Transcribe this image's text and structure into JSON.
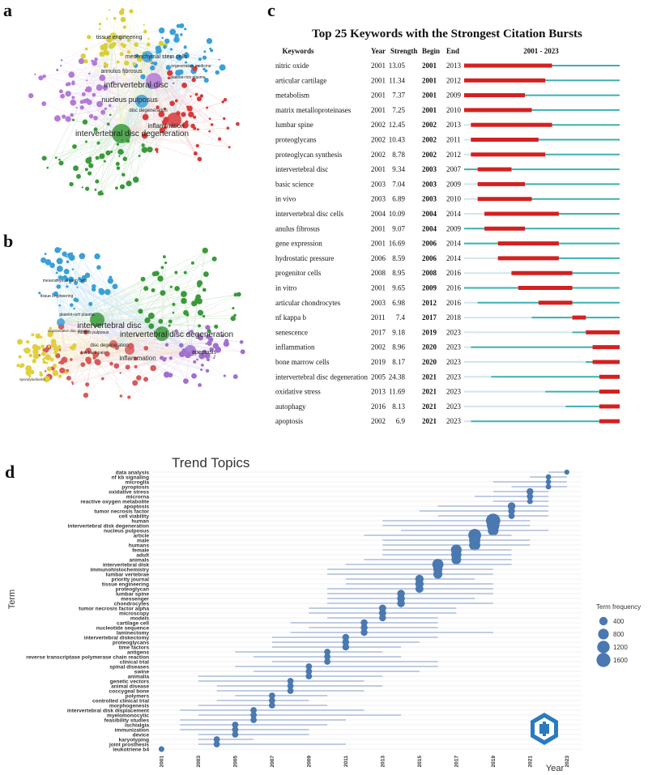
{
  "panels": {
    "a": {
      "letter": "a"
    },
    "b": {
      "letter": "b"
    },
    "c": {
      "letter": "c"
    },
    "d": {
      "letter": "d"
    }
  },
  "network_a": {
    "big_labels": [
      "intervertebral disc",
      "intervertebral disc degeneration",
      "nucleus pulposus",
      "inflammation",
      "annulus fibrosus",
      "mesenchymal stem cells",
      "tissue engineering",
      "disc degeneration",
      "regenerative medicine",
      "platelet-rich plasma"
    ],
    "colors": {
      "green": "#3a9a3a",
      "red": "#d83a3a",
      "blue": "#3aa0d8",
      "yellow": "#d8d03a",
      "purple": "#b47ad8"
    }
  },
  "network_b": {
    "big_labels": [
      "intervertebral disc",
      "intervertebral disc degeneration",
      "inflammation",
      "apoptosis",
      "disc degeneration",
      "mesenchymal stem cells",
      "tissue engineering",
      "nucleus pulposus",
      "low back pain",
      "platelet-rich plasma",
      "spondylodiscitis",
      "degenerative disc disease"
    ],
    "colors": {
      "green": "#3a9a3a",
      "red": "#d85a5a",
      "blue": "#3aa0d8",
      "yellow": "#e0d040",
      "purple": "#a070d0"
    }
  },
  "chart_data": [
    {
      "type": "table",
      "panel": "c",
      "title": "Top 25 Keywords with the Strongest Citation Bursts",
      "columns": [
        "Keywords",
        "Year",
        "Strength",
        "Begin",
        "End",
        "2001 - 2023"
      ],
      "timeline_range": [
        2001,
        2023
      ],
      "rows": [
        {
          "keyword": "nitric oxide",
          "year": 2001,
          "strength": "13.05",
          "begin": 2001,
          "end": 2013
        },
        {
          "keyword": "articular cartilage",
          "year": 2001,
          "strength": "11.34",
          "begin": 2001,
          "end": 2012
        },
        {
          "keyword": "metabolism",
          "year": 2001,
          "strength": "7.37",
          "begin": 2001,
          "end": 2009
        },
        {
          "keyword": "matrix metalloproteinases",
          "year": 2001,
          "strength": "7.25",
          "begin": 2001,
          "end": 2010
        },
        {
          "keyword": "lumbar spine",
          "year": 2002,
          "strength": "12.45",
          "begin": 2002,
          "end": 2013
        },
        {
          "keyword": "proteoglycans",
          "year": 2002,
          "strength": "10.43",
          "begin": 2002,
          "end": 2011
        },
        {
          "keyword": "proteoglycan synthesis",
          "year": 2002,
          "strength": "8.78",
          "begin": 2002,
          "end": 2012
        },
        {
          "keyword": "intervertebral disc",
          "year": 2001,
          "strength": "9.34",
          "begin": 2003,
          "end": 2007
        },
        {
          "keyword": "basic science",
          "year": 2003,
          "strength": "7.04",
          "begin": 2003,
          "end": 2009
        },
        {
          "keyword": "in vivo",
          "year": 2003,
          "strength": "6.89",
          "begin": 2003,
          "end": 2010
        },
        {
          "keyword": "intervertebral disc cells",
          "year": 2004,
          "strength": "10.09",
          "begin": 2004,
          "end": 2014
        },
        {
          "keyword": "anulus fibrosus",
          "year": 2001,
          "strength": "9.07",
          "begin": 2004,
          "end": 2009
        },
        {
          "keyword": "gene expression",
          "year": 2001,
          "strength": "16.69",
          "begin": 2006,
          "end": 2014
        },
        {
          "keyword": "hydrostatic pressure",
          "year": 2006,
          "strength": "8.59",
          "begin": 2006,
          "end": 2014
        },
        {
          "keyword": "progenitor cells",
          "year": 2008,
          "strength": "8.95",
          "begin": 2008,
          "end": 2016
        },
        {
          "keyword": "in vitro",
          "year": 2001,
          "strength": "9.65",
          "begin": 2009,
          "end": 2016
        },
        {
          "keyword": "articular chondrocytes",
          "year": 2003,
          "strength": "6.98",
          "begin": 2012,
          "end": 2016
        },
        {
          "keyword": "nf kappa b",
          "year": 2011,
          "strength": "7.4",
          "begin": 2017,
          "end": 2018
        },
        {
          "keyword": "senescence",
          "year": 2017,
          "strength": "9.18",
          "begin": 2019,
          "end": 2023
        },
        {
          "keyword": "inflammation",
          "year": 2002,
          "strength": "8.96",
          "begin": 2020,
          "end": 2023
        },
        {
          "keyword": "bone marrow cells",
          "year": 2019,
          "strength": "8.17",
          "begin": 2020,
          "end": 2023
        },
        {
          "keyword": "intervertebral disc degeneration",
          "year": 2005,
          "strength": "24.38",
          "begin": 2021,
          "end": 2023
        },
        {
          "keyword": "oxidative stress",
          "year": 2013,
          "strength": "11.69",
          "begin": 2021,
          "end": 2023
        },
        {
          "keyword": "autophagy",
          "year": 2016,
          "strength": "8.13",
          "begin": 2021,
          "end": 2023
        },
        {
          "keyword": "apoptosis",
          "year": 2002,
          "strength": "6.9",
          "begin": 2021,
          "end": 2023
        }
      ],
      "colors": {
        "burst": "#d42020",
        "active": "#3ab0b0",
        "inactive": "#cfe6ea"
      }
    },
    {
      "type": "scatter",
      "panel": "d",
      "title": "Trend Topics",
      "xlabel": "Year",
      "ylabel": "Term",
      "xlim": [
        2000.5,
        2023.8
      ],
      "x_ticks": [
        2001,
        2003,
        2005,
        2007,
        2009,
        2011,
        2013,
        2015,
        2017,
        2019,
        2021,
        2023
      ],
      "legend": {
        "title": "Term frequency",
        "sizes": [
          400,
          800,
          1200,
          1600
        ],
        "position": "right"
      },
      "point_color": "#4a78b0",
      "line_color": "#9aaed0",
      "terms": [
        {
          "term": "data analysis",
          "start": 2022,
          "median": 2023,
          "end": 2023,
          "freq": 60
        },
        {
          "term": "nf kb signaling",
          "start": 2021,
          "median": 2022,
          "end": 2023,
          "freq": 80
        },
        {
          "term": "microglia",
          "start": 2019,
          "median": 2022,
          "end": 2023,
          "freq": 70
        },
        {
          "term": "pyroptosis",
          "start": 2020,
          "median": 2022,
          "end": 2023,
          "freq": 90
        },
        {
          "term": "oxidative stress",
          "start": 2019,
          "median": 2021,
          "end": 2022,
          "freq": 200
        },
        {
          "term": "microrna",
          "start": 2018,
          "median": 2021,
          "end": 2022,
          "freq": 150
        },
        {
          "term": "reactive oxygen metabolite",
          "start": 2019,
          "median": 2021,
          "end": 2022,
          "freq": 100
        },
        {
          "term": "apoptosis",
          "start": 2016,
          "median": 2020,
          "end": 2022,
          "freq": 300
        },
        {
          "term": "tumor necrosis factor",
          "start": 2015,
          "median": 2020,
          "end": 2022,
          "freq": 200
        },
        {
          "term": "cell viability",
          "start": 2016,
          "median": 2020,
          "end": 2022,
          "freq": 150
        },
        {
          "term": "human",
          "start": 2013,
          "median": 2019,
          "end": 2021,
          "freq": 1700
        },
        {
          "term": "intervertebral disk degeneration",
          "start": 2013,
          "median": 2019,
          "end": 2021,
          "freq": 1200
        },
        {
          "term": "nucleus pulposus",
          "start": 2014,
          "median": 2019,
          "end": 2022,
          "freq": 800
        },
        {
          "term": "article",
          "start": 2012,
          "median": 2018,
          "end": 2020,
          "freq": 1300
        },
        {
          "term": "male",
          "start": 2013,
          "median": 2018,
          "end": 2021,
          "freq": 900
        },
        {
          "term": "humans",
          "start": 2013,
          "median": 2018,
          "end": 2021,
          "freq": 900
        },
        {
          "term": "female",
          "start": 2013,
          "median": 2017,
          "end": 2020,
          "freq": 800
        },
        {
          "term": "adult",
          "start": 2013,
          "median": 2017,
          "end": 2020,
          "freq": 700
        },
        {
          "term": "animals",
          "start": 2012,
          "median": 2017,
          "end": 2020,
          "freq": 600
        },
        {
          "term": "intervertebral disk",
          "start": 2011,
          "median": 2016,
          "end": 2020,
          "freq": 900
        },
        {
          "term": "immunohistochemistry",
          "start": 2010,
          "median": 2016,
          "end": 2019,
          "freq": 500
        },
        {
          "term": "lumbar vertebrae",
          "start": 2010,
          "median": 2016,
          "end": 2019,
          "freq": 500
        },
        {
          "term": "priority journal",
          "start": 2011,
          "median": 2015,
          "end": 2018,
          "freq": 400
        },
        {
          "term": "tissue engineering",
          "start": 2011,
          "median": 2015,
          "end": 2019,
          "freq": 400
        },
        {
          "term": "proteoglycan",
          "start": 2010,
          "median": 2015,
          "end": 2019,
          "freq": 350
        },
        {
          "term": "lumbar spine",
          "start": 2010,
          "median": 2014,
          "end": 2019,
          "freq": 300
        },
        {
          "term": "messenger",
          "start": 2010,
          "median": 2014,
          "end": 2018,
          "freq": 300
        },
        {
          "term": "chondrocytes",
          "start": 2010,
          "median": 2014,
          "end": 2019,
          "freq": 300
        },
        {
          "term": "tumor necrosis factor alpha",
          "start": 2009,
          "median": 2013,
          "end": 2017,
          "freq": 250
        },
        {
          "term": "microscopy",
          "start": 2009,
          "median": 2013,
          "end": 2017,
          "freq": 250
        },
        {
          "term": "models",
          "start": 2010,
          "median": 2013,
          "end": 2016,
          "freq": 200
        },
        {
          "term": "cartilage cell",
          "start": 2008,
          "median": 2012,
          "end": 2016,
          "freq": 200
        },
        {
          "term": "nucleotide sequence",
          "start": 2009,
          "median": 2012,
          "end": 2016,
          "freq": 200
        },
        {
          "term": "laminectomy",
          "start": 2008,
          "median": 2012,
          "end": 2019,
          "freq": 200
        },
        {
          "term": "intervertebral diskectomy",
          "start": 2007,
          "median": 2011,
          "end": 2016,
          "freq": 200
        },
        {
          "term": "proteoglycans",
          "start": 2007,
          "median": 2011,
          "end": 2015,
          "freq": 200
        },
        {
          "term": "time factors",
          "start": 2007,
          "median": 2011,
          "end": 2014,
          "freq": 200
        },
        {
          "term": "antigens",
          "start": 2005,
          "median": 2010,
          "end": 2013,
          "freq": 150
        },
        {
          "term": "reverse transcriptase polymerase chain reaction",
          "start": 2006,
          "median": 2010,
          "end": 2014,
          "freq": 150
        },
        {
          "term": "clinical trial",
          "start": 2007,
          "median": 2010,
          "end": 2016,
          "freq": 150
        },
        {
          "term": "spinal diseases",
          "start": 2005,
          "median": 2009,
          "end": 2016,
          "freq": 150
        },
        {
          "term": "swine",
          "start": 2006,
          "median": 2009,
          "end": 2015,
          "freq": 150
        },
        {
          "term": "animalia",
          "start": 2003,
          "median": 2009,
          "end": 2013,
          "freq": 150
        },
        {
          "term": "genetic vectors",
          "start": 2003,
          "median": 2008,
          "end": 2012,
          "freq": 150
        },
        {
          "term": "animal disease",
          "start": 2004,
          "median": 2008,
          "end": 2013,
          "freq": 150
        },
        {
          "term": "coccygeal bone",
          "start": 2004,
          "median": 2008,
          "end": 2012,
          "freq": 150
        },
        {
          "term": "polymers",
          "start": 2005,
          "median": 2007,
          "end": 2010,
          "freq": 150
        },
        {
          "term": "controlled clinical trial",
          "start": 2004,
          "median": 2007,
          "end": 2009,
          "freq": 150
        },
        {
          "term": "morphogenesis",
          "start": 2003,
          "median": 2007,
          "end": 2010,
          "freq": 150
        },
        {
          "term": "intervertebral disk displacement",
          "start": 2002,
          "median": 2006,
          "end": 2012,
          "freq": 150
        },
        {
          "term": "myelomonocytic",
          "start": 2003,
          "median": 2006,
          "end": 2014,
          "freq": 150
        },
        {
          "term": "feasibility studies",
          "start": 2002,
          "median": 2006,
          "end": 2011,
          "freq": 150
        },
        {
          "term": "ischialgia",
          "start": 2002,
          "median": 2005,
          "end": 2010,
          "freq": 150
        },
        {
          "term": "immunization",
          "start": 2002,
          "median": 2005,
          "end": 2009,
          "freq": 150
        },
        {
          "term": "device",
          "start": 2003,
          "median": 2005,
          "end": 2009,
          "freq": 150
        },
        {
          "term": "karyotyping",
          "start": 2003,
          "median": 2004,
          "end": 2006,
          "freq": 150
        },
        {
          "term": "joint prosthesis",
          "start": 2003,
          "median": 2004,
          "end": 2011,
          "freq": 150
        },
        {
          "term": "leukotriene b4",
          "start": 2001,
          "median": 2001,
          "end": 2001,
          "freq": 100
        }
      ]
    }
  ]
}
